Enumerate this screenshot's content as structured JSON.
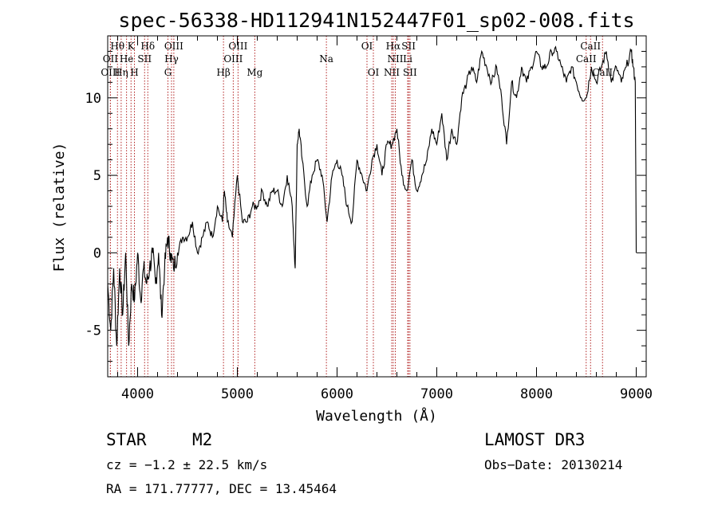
{
  "chart_data": {
    "type": "line",
    "title": "spec-56338-HD112941N152447F01_sp02-008.fits",
    "xlabel": "Wavelength (Å)",
    "ylabel": "Flux (relative)",
    "xlim": [
      3700,
      9100
    ],
    "ylim": [
      -8,
      14
    ],
    "xticks": [
      4000,
      5000,
      6000,
      7000,
      8000,
      9000
    ],
    "yticks": [
      -5,
      0,
      5,
      10
    ],
    "grid": false,
    "series": [
      {
        "name": "flux",
        "x": [
          3700,
          3730,
          3760,
          3790,
          3820,
          3850,
          3880,
          3910,
          3940,
          3970,
          4000,
          4030,
          4060,
          4090,
          4120,
          4150,
          4180,
          4210,
          4240,
          4270,
          4300,
          4330,
          4360,
          4400,
          4450,
          4500,
          4550,
          4600,
          4650,
          4700,
          4750,
          4800,
          4850,
          4870,
          4900,
          4950,
          5000,
          5050,
          5100,
          5150,
          5200,
          5250,
          5300,
          5350,
          5400,
          5450,
          5500,
          5550,
          5580,
          5600,
          5620,
          5650,
          5700,
          5750,
          5800,
          5850,
          5900,
          5950,
          6000,
          6050,
          6100,
          6150,
          6200,
          6250,
          6300,
          6350,
          6400,
          6450,
          6500,
          6550,
          6600,
          6650,
          6700,
          6750,
          6800,
          6850,
          6900,
          6950,
          7000,
          7050,
          7100,
          7150,
          7200,
          7250,
          7300,
          7350,
          7400,
          7450,
          7500,
          7550,
          7600,
          7650,
          7700,
          7750,
          7800,
          7850,
          7900,
          7950,
          8000,
          8050,
          8100,
          8150,
          8200,
          8250,
          8300,
          8350,
          8400,
          8450,
          8500,
          8550,
          8600,
          8650,
          8700,
          8750,
          8800,
          8850,
          8900,
          8950,
          8970,
          8990,
          9000
        ],
        "y": [
          -2,
          -5,
          -1,
          -6,
          -1,
          -4,
          0,
          -6,
          -2,
          -3,
          0,
          -3,
          -1,
          -2,
          -1,
          0,
          -2,
          0,
          -4,
          -1,
          1,
          0,
          -1,
          0,
          1,
          1,
          2,
          0,
          1,
          2,
          1,
          3,
          2,
          4,
          2,
          1,
          5,
          2,
          2,
          3,
          3,
          4,
          3,
          4,
          4,
          3,
          5,
          3,
          -1,
          7,
          8,
          6,
          3,
          5,
          6,
          5,
          2,
          5,
          6,
          5,
          3,
          2,
          6,
          5,
          4,
          6,
          7,
          5,
          7,
          7,
          8,
          5,
          4,
          6,
          4,
          5,
          6,
          8,
          7,
          9,
          6,
          8,
          7,
          10,
          11,
          12,
          11,
          13,
          12,
          11,
          12,
          10,
          7,
          11,
          10,
          12,
          11,
          12,
          13,
          12,
          12,
          13,
          13,
          12,
          11,
          12,
          11,
          10,
          10,
          12,
          11,
          12,
          13,
          11,
          12,
          11,
          12,
          13,
          12,
          11,
          0
        ]
      }
    ],
    "spectral_lines": [
      {
        "label": "Hθ",
        "x": 3798,
        "row": 0
      },
      {
        "label": "K",
        "x": 3934,
        "row": 0
      },
      {
        "label": "Hδ",
        "x": 4102,
        "row": 0
      },
      {
        "label": "OIII",
        "x": 4363,
        "row": 0
      },
      {
        "label": "OIII",
        "x": 5007,
        "row": 0
      },
      {
        "label": "OI",
        "x": 6300,
        "row": 0
      },
      {
        "label": "Hα",
        "x": 6563,
        "row": 0
      },
      {
        "label": "SII",
        "x": 6717,
        "row": 0
      },
      {
        "label": "CaII",
        "x": 8542,
        "row": 0
      },
      {
        "label": "OII",
        "x": 3727,
        "row": 1
      },
      {
        "label": "He",
        "x": 3889,
        "row": 1
      },
      {
        "label": "SII",
        "x": 4070,
        "row": 1
      },
      {
        "label": "Hγ",
        "x": 4340,
        "row": 1
      },
      {
        "label": "OIII",
        "x": 4959,
        "row": 1
      },
      {
        "label": "Na",
        "x": 5893,
        "row": 1
      },
      {
        "label": "NII",
        "x": 6584,
        "row": 1
      },
      {
        "label": "Li",
        "x": 6708,
        "row": 1
      },
      {
        "label": "CaII",
        "x": 8498,
        "row": 1
      },
      {
        "label": "OIII",
        "x": 3727,
        "row": 2
      },
      {
        "label": "Hη",
        "x": 3835,
        "row": 2
      },
      {
        "label": "H",
        "x": 3968,
        "row": 2
      },
      {
        "label": "G",
        "x": 4304,
        "row": 2
      },
      {
        "label": "Hβ",
        "x": 4861,
        "row": 2
      },
      {
        "label": "Mg",
        "x": 5175,
        "row": 2
      },
      {
        "label": "OI",
        "x": 6364,
        "row": 2
      },
      {
        "label": "NII",
        "x": 6548,
        "row": 2
      },
      {
        "label": "SII",
        "x": 6731,
        "row": 2
      },
      {
        "label": "CaII",
        "x": 8662,
        "row": 2
      }
    ]
  },
  "info": {
    "class": "STAR",
    "subclass": "M2",
    "cz": "cz = −1.2 ± 22.5 km/s",
    "radec": "RA = 171.77777, DEC =  13.45464",
    "survey": "LAMOST DR3",
    "obsdate": "Obs−Date: 20130214"
  }
}
